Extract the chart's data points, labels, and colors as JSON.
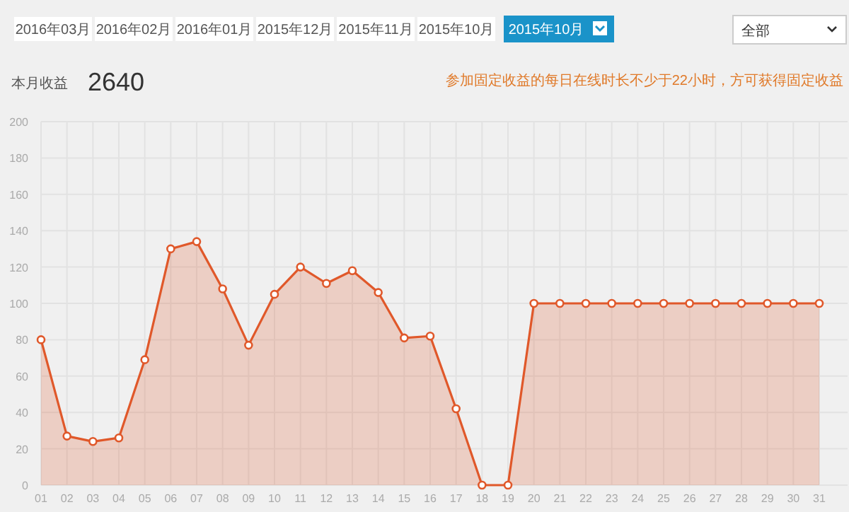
{
  "chart_data": {
    "type": "area",
    "title": "本月收益",
    "subtitle": "2640",
    "annotations": [
      "2016年03月",
      "2016年02月",
      "2016年01月",
      "2015年12月",
      "2015年11月",
      "2015年10月",
      "2015年10月",
      "全部",
      "参加固定收益的每日在线时长不少于22小时，方可获得固定收益"
    ],
    "categories": [
      "01",
      "02",
      "03",
      "04",
      "05",
      "06",
      "07",
      "08",
      "09",
      "10",
      "11",
      "12",
      "13",
      "14",
      "15",
      "16",
      "17",
      "18",
      "19",
      "20",
      "21",
      "22",
      "23",
      "24",
      "25",
      "26",
      "27",
      "28",
      "29",
      "30",
      "31"
    ],
    "series": [
      {
        "color": "#e0582a",
        "values": [
          80,
          27,
          24,
          26,
          69,
          130,
          134,
          108,
          77,
          105,
          120,
          111,
          118,
          106,
          81,
          82,
          42,
          0,
          0,
          100,
          100,
          100,
          100,
          100,
          100,
          100,
          100,
          100,
          100,
          100,
          100
        ]
      }
    ],
    "ylim": [
      0,
      200
    ],
    "yticks": [
      0,
      20,
      40,
      60,
      80,
      100,
      120,
      140,
      160,
      180,
      200
    ],
    "grid": true,
    "marker": "circle"
  }
}
